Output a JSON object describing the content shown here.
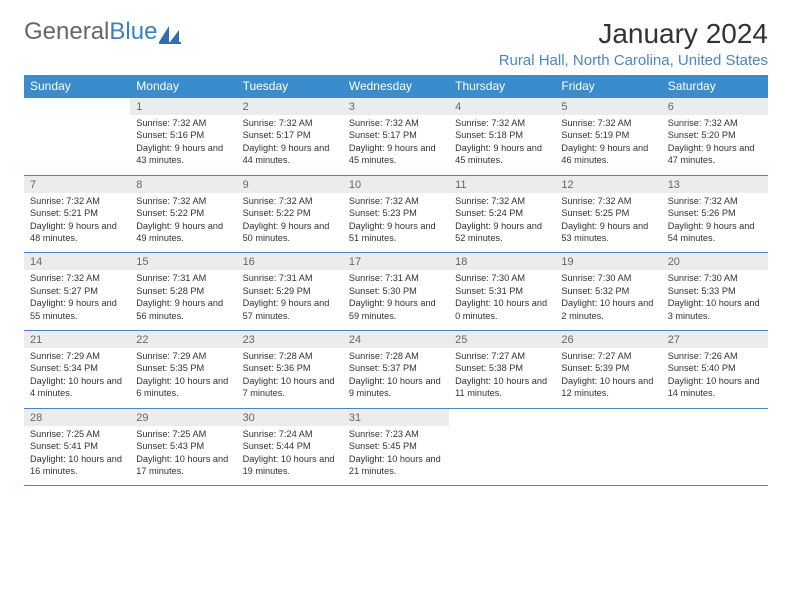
{
  "brand": {
    "part1": "General",
    "part2": "Blue"
  },
  "title": "January 2024",
  "location": "Rural Hall, North Carolina, United States",
  "colors": {
    "header_bg": "#3b8ccc",
    "accent": "#4a86c5",
    "daynum_bg": "#ececec",
    "text": "#333333"
  },
  "day_names": [
    "Sunday",
    "Monday",
    "Tuesday",
    "Wednesday",
    "Thursday",
    "Friday",
    "Saturday"
  ],
  "weeks": [
    {
      "nums": [
        "",
        "1",
        "2",
        "3",
        "4",
        "5",
        "6"
      ],
      "cells": [
        null,
        {
          "sunrise": "7:32 AM",
          "sunset": "5:16 PM",
          "daylight": "9 hours and 43 minutes."
        },
        {
          "sunrise": "7:32 AM",
          "sunset": "5:17 PM",
          "daylight": "9 hours and 44 minutes."
        },
        {
          "sunrise": "7:32 AM",
          "sunset": "5:17 PM",
          "daylight": "9 hours and 45 minutes."
        },
        {
          "sunrise": "7:32 AM",
          "sunset": "5:18 PM",
          "daylight": "9 hours and 45 minutes."
        },
        {
          "sunrise": "7:32 AM",
          "sunset": "5:19 PM",
          "daylight": "9 hours and 46 minutes."
        },
        {
          "sunrise": "7:32 AM",
          "sunset": "5:20 PM",
          "daylight": "9 hours and 47 minutes."
        }
      ]
    },
    {
      "nums": [
        "7",
        "8",
        "9",
        "10",
        "11",
        "12",
        "13"
      ],
      "cells": [
        {
          "sunrise": "7:32 AM",
          "sunset": "5:21 PM",
          "daylight": "9 hours and 48 minutes."
        },
        {
          "sunrise": "7:32 AM",
          "sunset": "5:22 PM",
          "daylight": "9 hours and 49 minutes."
        },
        {
          "sunrise": "7:32 AM",
          "sunset": "5:22 PM",
          "daylight": "9 hours and 50 minutes."
        },
        {
          "sunrise": "7:32 AM",
          "sunset": "5:23 PM",
          "daylight": "9 hours and 51 minutes."
        },
        {
          "sunrise": "7:32 AM",
          "sunset": "5:24 PM",
          "daylight": "9 hours and 52 minutes."
        },
        {
          "sunrise": "7:32 AM",
          "sunset": "5:25 PM",
          "daylight": "9 hours and 53 minutes."
        },
        {
          "sunrise": "7:32 AM",
          "sunset": "5:26 PM",
          "daylight": "9 hours and 54 minutes."
        }
      ]
    },
    {
      "nums": [
        "14",
        "15",
        "16",
        "17",
        "18",
        "19",
        "20"
      ],
      "cells": [
        {
          "sunrise": "7:32 AM",
          "sunset": "5:27 PM",
          "daylight": "9 hours and 55 minutes."
        },
        {
          "sunrise": "7:31 AM",
          "sunset": "5:28 PM",
          "daylight": "9 hours and 56 minutes."
        },
        {
          "sunrise": "7:31 AM",
          "sunset": "5:29 PM",
          "daylight": "9 hours and 57 minutes."
        },
        {
          "sunrise": "7:31 AM",
          "sunset": "5:30 PM",
          "daylight": "9 hours and 59 minutes."
        },
        {
          "sunrise": "7:30 AM",
          "sunset": "5:31 PM",
          "daylight": "10 hours and 0 minutes."
        },
        {
          "sunrise": "7:30 AM",
          "sunset": "5:32 PM",
          "daylight": "10 hours and 2 minutes."
        },
        {
          "sunrise": "7:30 AM",
          "sunset": "5:33 PM",
          "daylight": "10 hours and 3 minutes."
        }
      ]
    },
    {
      "nums": [
        "21",
        "22",
        "23",
        "24",
        "25",
        "26",
        "27"
      ],
      "cells": [
        {
          "sunrise": "7:29 AM",
          "sunset": "5:34 PM",
          "daylight": "10 hours and 4 minutes."
        },
        {
          "sunrise": "7:29 AM",
          "sunset": "5:35 PM",
          "daylight": "10 hours and 6 minutes."
        },
        {
          "sunrise": "7:28 AM",
          "sunset": "5:36 PM",
          "daylight": "10 hours and 7 minutes."
        },
        {
          "sunrise": "7:28 AM",
          "sunset": "5:37 PM",
          "daylight": "10 hours and 9 minutes."
        },
        {
          "sunrise": "7:27 AM",
          "sunset": "5:38 PM",
          "daylight": "10 hours and 11 minutes."
        },
        {
          "sunrise": "7:27 AM",
          "sunset": "5:39 PM",
          "daylight": "10 hours and 12 minutes."
        },
        {
          "sunrise": "7:26 AM",
          "sunset": "5:40 PM",
          "daylight": "10 hours and 14 minutes."
        }
      ]
    },
    {
      "nums": [
        "28",
        "29",
        "30",
        "31",
        "",
        "",
        ""
      ],
      "cells": [
        {
          "sunrise": "7:25 AM",
          "sunset": "5:41 PM",
          "daylight": "10 hours and 16 minutes."
        },
        {
          "sunrise": "7:25 AM",
          "sunset": "5:43 PM",
          "daylight": "10 hours and 17 minutes."
        },
        {
          "sunrise": "7:24 AM",
          "sunset": "5:44 PM",
          "daylight": "10 hours and 19 minutes."
        },
        {
          "sunrise": "7:23 AM",
          "sunset": "5:45 PM",
          "daylight": "10 hours and 21 minutes."
        },
        null,
        null,
        null
      ]
    }
  ],
  "labels": {
    "sunrise": "Sunrise:",
    "sunset": "Sunset:",
    "daylight": "Daylight:"
  }
}
